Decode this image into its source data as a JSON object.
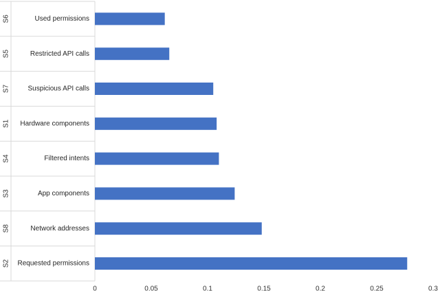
{
  "chart_data": {
    "type": "bar",
    "orientation": "horizontal",
    "categories": [
      {
        "code": "S6",
        "label": "Used permissions"
      },
      {
        "code": "S5",
        "label": "Restricted API calls"
      },
      {
        "code": "S7",
        "label": "Suspicious API calls"
      },
      {
        "code": "S1",
        "label": "Hardware components"
      },
      {
        "code": "S4",
        "label": "Filtered intents"
      },
      {
        "code": "S3",
        "label": "App components"
      },
      {
        "code": "S8",
        "label": "Network addresses"
      },
      {
        "code": "S2",
        "label": "Requested permissions"
      }
    ],
    "values": [
      0.062,
      0.066,
      0.105,
      0.108,
      0.11,
      0.124,
      0.148,
      0.277
    ],
    "xlim": [
      0,
      0.3
    ],
    "xticks": [
      "0",
      "0.05",
      "0.1",
      "0.15",
      "0.2",
      "0.25",
      "0.3"
    ],
    "title": "",
    "xlabel": "",
    "ylabel": "",
    "grid": false,
    "legend": "none",
    "bar_color": "#4472c4",
    "separator_color": "#d9d9d9"
  }
}
